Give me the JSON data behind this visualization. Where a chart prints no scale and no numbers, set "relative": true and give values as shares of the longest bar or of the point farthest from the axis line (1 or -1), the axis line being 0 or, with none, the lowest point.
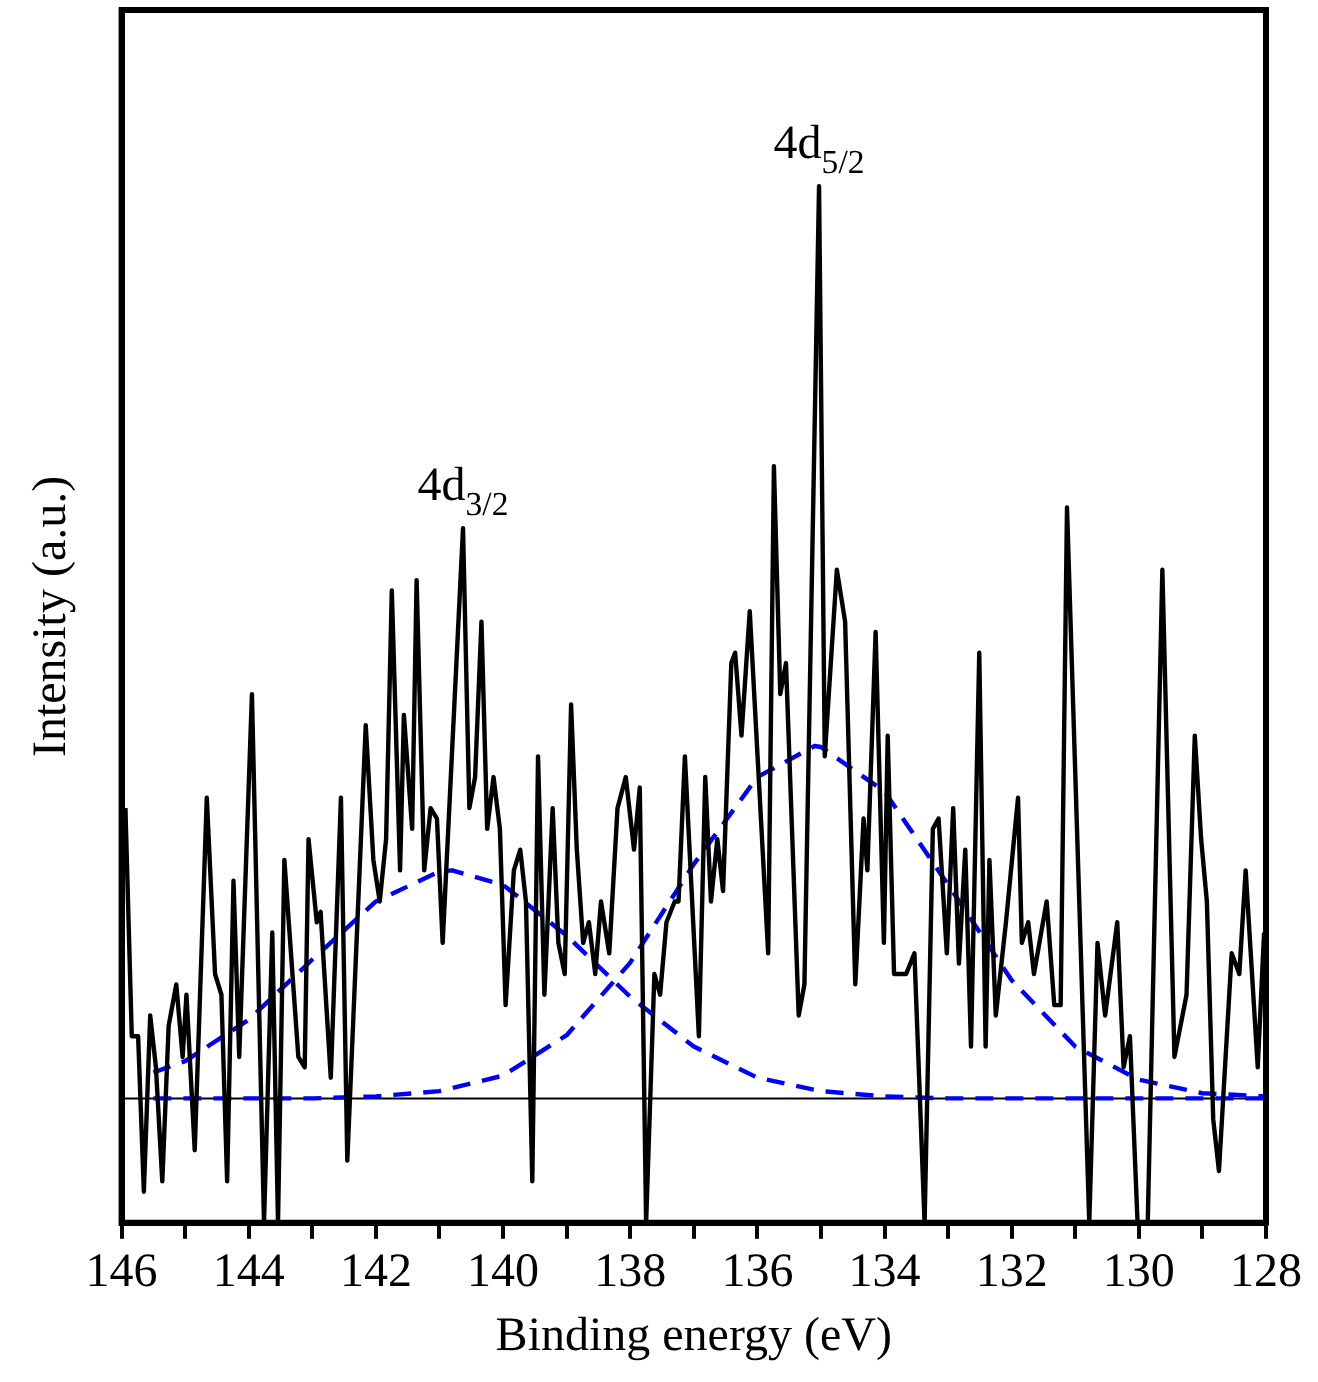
{
  "chart_data": {
    "type": "line",
    "xlabel": "Binding energy (eV)",
    "ylabel": "Intensity (a.u.)",
    "relative": true,
    "xlim": [
      146,
      128
    ],
    "xticks": [
      146,
      {
        "value": 145,
        "label": null
      },
      144,
      {
        "value": 143,
        "label": null
      },
      142,
      {
        "value": 141,
        "label": null
      },
      140,
      {
        "value": 139,
        "label": null
      },
      138,
      {
        "value": 137,
        "label": null
      },
      136,
      {
        "value": 135,
        "label": null
      },
      134,
      {
        "value": 133,
        "label": null
      },
      132,
      {
        "value": 131,
        "label": null
      },
      130,
      {
        "value": 129,
        "label": null
      },
      128
    ],
    "grid": false,
    "legend": false,
    "marker": "none",
    "series": [
      {
        "color": "#000000",
        "line_style": "solid",
        "x": [
          145.94,
          145.84,
          145.74,
          145.65,
          145.55,
          145.46,
          145.36,
          145.26,
          145.14,
          145.04,
          144.98,
          144.85,
          144.66,
          144.53,
          144.43,
          144.34,
          144.24,
          144.15,
          143.95,
          143.76,
          143.63,
          143.54,
          143.44,
          143.22,
          143.12,
          143.06,
          142.93,
          142.87,
          142.71,
          142.55,
          142.45,
          142.16,
          142.04,
          141.94,
          141.84,
          141.75,
          141.62,
          141.56,
          141.43,
          141.36,
          141.24,
          141.14,
          141.04,
          140.95,
          140.63,
          140.53,
          140.44,
          140.34,
          140.25,
          140.15,
          140.05,
          139.96,
          139.83,
          139.73,
          139.64,
          139.54,
          139.45,
          139.35,
          139.22,
          139.13,
          139.03,
          138.93,
          138.84,
          138.74,
          138.65,
          138.55,
          138.46,
          138.33,
          138.2,
          138.07,
          137.94,
          137.85,
          137.75,
          137.62,
          137.53,
          137.43,
          137.3,
          137.24,
          137.14,
          136.92,
          136.82,
          136.73,
          136.63,
          136.54,
          136.41,
          136.35,
          136.25,
          136.12,
          135.83,
          135.74,
          135.64,
          135.55,
          135.35,
          135.26,
          135.03,
          134.94,
          134.75,
          134.62,
          134.46,
          134.33,
          134.27,
          134.14,
          134.01,
          133.95,
          133.85,
          133.76,
          133.66,
          133.53,
          133.37,
          133.24,
          133.15,
          133.02,
          132.92,
          132.83,
          132.73,
          132.64,
          132.51,
          132.41,
          132.35,
          132.25,
          132.09,
          131.9,
          131.84,
          131.74,
          131.65,
          131.45,
          131.33,
          131.23,
          131.13,
          130.78,
          130.65,
          130.53,
          130.34,
          130.24,
          130.14,
          130.02,
          129.86,
          129.63,
          129.44,
          129.25,
          129.12,
          129.02,
          128.93,
          128.83,
          128.74,
          128.54,
          128.42,
          128.32,
          128.13,
          128.03
        ],
        "values": [
          0.4,
          0.18,
          0.18,
          0.03,
          0.2,
          0.15,
          0.04,
          0.19,
          0.23,
          0.16,
          0.22,
          0.07,
          0.41,
          0.24,
          0.22,
          0.04,
          0.33,
          0.16,
          0.51,
          0,
          0.28,
          0,
          0.35,
          0.16,
          0.15,
          0.37,
          0.29,
          0.3,
          0.14,
          0.41,
          0.06,
          0.48,
          0.35,
          0.31,
          0.37,
          0.61,
          0.34,
          0.49,
          0.38,
          0.62,
          0.34,
          0.4,
          0.39,
          0.27,
          0.67,
          0.4,
          0.43,
          0.58,
          0.38,
          0.43,
          0.38,
          0.21,
          0.34,
          0.36,
          0.31,
          0.04,
          0.45,
          0.22,
          0.4,
          0.27,
          0.24,
          0.5,
          0.36,
          0.27,
          0.29,
          0.24,
          0.31,
          0.26,
          0.4,
          0.43,
          0.36,
          0.42,
          0,
          0.24,
          0.22,
          0.29,
          0.31,
          0.31,
          0.45,
          0.18,
          0.43,
          0.31,
          0.37,
          0.32,
          0.54,
          0.55,
          0.47,
          0.59,
          0.26,
          0.73,
          0.51,
          0.54,
          0.2,
          0.23,
          1,
          0.45,
          0.63,
          0.58,
          0.23,
          0.39,
          0.34,
          0.57,
          0.27,
          0.47,
          0.24,
          0.24,
          0.24,
          0.26,
          0,
          0.38,
          0.39,
          0.26,
          0.4,
          0.25,
          0.36,
          0.17,
          0.55,
          0.17,
          0.35,
          0.2,
          0.29,
          0.41,
          0.27,
          0.29,
          0.24,
          0.31,
          0.21,
          0.21,
          0.69,
          0,
          0.27,
          0.2,
          0.29,
          0.15,
          0.18,
          0,
          0,
          0.63,
          0.16,
          0.22,
          0.47,
          0.37,
          0.31,
          0.1,
          0.05,
          0.26,
          0.24,
          0.34,
          0.15,
          0.28
        ]
      },
      {
        "color": "#0000ff",
        "line_style": "dashed",
        "x": [
          145.5,
          145,
          144,
          143,
          142,
          141,
          140.8,
          140,
          139,
          138,
          137,
          136,
          135,
          134,
          133,
          132,
          131,
          130,
          129,
          128
        ],
        "values": [
          0.145,
          0.156,
          0.196,
          0.254,
          0.31,
          0.339,
          0.34,
          0.326,
          0.277,
          0.218,
          0.17,
          0.14,
          0.127,
          0.122,
          0.12,
          0.12,
          0.12,
          0.12,
          0.12,
          0.12
        ]
      },
      {
        "color": "#0000ff",
        "line_style": "dashed",
        "x": [
          145.5,
          144,
          143,
          142,
          141,
          140,
          139,
          138,
          137,
          136,
          135.1,
          135,
          134,
          133,
          132,
          131,
          130,
          129,
          128
        ],
        "values": [
          0.12,
          0.12,
          0.12,
          0.122,
          0.127,
          0.142,
          0.181,
          0.251,
          0.346,
          0.43,
          0.46,
          0.459,
          0.416,
          0.326,
          0.234,
          0.17,
          0.138,
          0.125,
          0.122
        ]
      }
    ],
    "ref_lines": [
      {
        "axis": "y",
        "value": 0.12,
        "color": "#000000"
      }
    ],
    "annotations": [
      {
        "text": "4d$_{3/2}$",
        "x": 140.63,
        "y": 0.67
      },
      {
        "text": "4d$_{5/2}$",
        "x": 135.03,
        "y": 1
      }
    ]
  }
}
